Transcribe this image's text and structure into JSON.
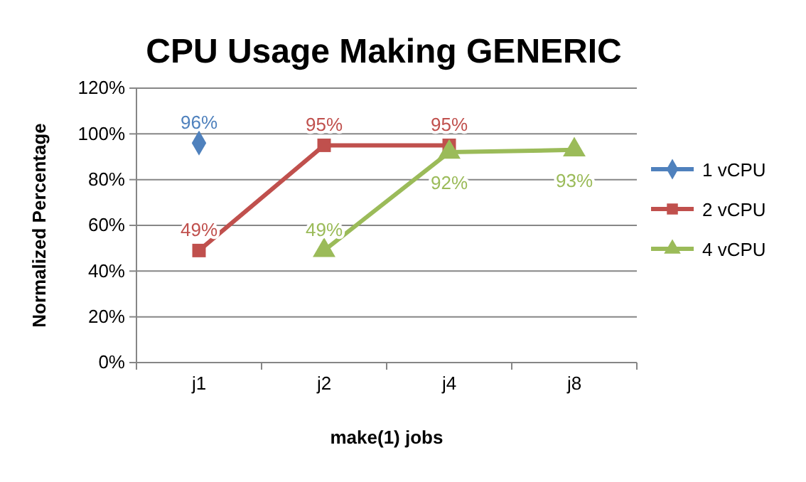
{
  "chart_data": {
    "type": "line",
    "title": "CPU Usage Making GENERIC",
    "xlabel": "make(1) jobs",
    "ylabel": "Normalized Percentage",
    "categories": [
      "j1",
      "j2",
      "j4",
      "j8"
    ],
    "series": [
      {
        "name": "1 vCPU",
        "color": "#4f81bd",
        "marker": "diamond",
        "values": [
          96,
          null,
          null,
          null
        ],
        "value_labels": [
          "96%",
          null,
          null,
          null
        ]
      },
      {
        "name": "2 vCPU",
        "color": "#c0504d",
        "marker": "square",
        "values": [
          49,
          95,
          95,
          null
        ],
        "value_labels": [
          "49%",
          "95%",
          "95%",
          null
        ]
      },
      {
        "name": "4 vCPU",
        "color": "#9bbb59",
        "marker": "triangle",
        "values": [
          null,
          49,
          92,
          93
        ],
        "value_labels": [
          null,
          "49%",
          "92%",
          "93%"
        ]
      }
    ],
    "ylim": [
      0,
      120
    ],
    "yticks": [
      {
        "value": 0,
        "label": "0%"
      },
      {
        "value": 20,
        "label": "20%"
      },
      {
        "value": 40,
        "label": "40%"
      },
      {
        "value": 60,
        "label": "60%"
      },
      {
        "value": 80,
        "label": "80%"
      },
      {
        "value": 100,
        "label": "100%"
      },
      {
        "value": 120,
        "label": "120%"
      }
    ],
    "grid": "y",
    "legend": "right",
    "line_style": "solid"
  }
}
